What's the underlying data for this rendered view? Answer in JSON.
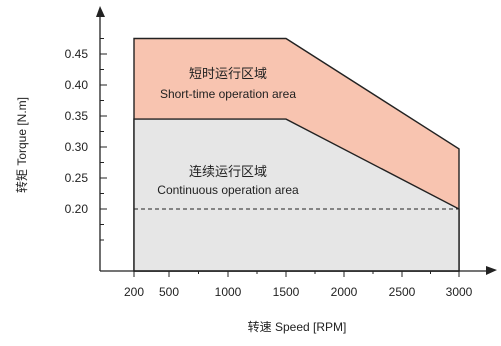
{
  "chart_data": {
    "type": "area",
    "xlabel": "转速 Speed [RPM]",
    "ylabel": "转矩 Torque [N.m]",
    "x_ticks": [
      200,
      500,
      1000,
      1500,
      2000,
      2500,
      3000
    ],
    "y_ticks": [
      0.2,
      0.25,
      0.3,
      0.35,
      0.4,
      0.45
    ],
    "y_tick_labels": [
      "0.20",
      "0.25",
      "0.30",
      "0.35",
      "0.40",
      "0.45"
    ],
    "xlim": [
      200,
      3000
    ],
    "ylim": [
      0.1,
      0.48
    ],
    "series": [
      {
        "x": [
          200,
          1500,
          3000
        ],
        "y": [
          0.475,
          0.475,
          0.297
        ],
        "color": "#f8c4b0"
      },
      {
        "x": [
          200,
          1500,
          3000
        ],
        "y": [
          0.345,
          0.345,
          0.2
        ],
        "color": "#e6e6e6"
      }
    ],
    "reference_line": {
      "y": 0.2,
      "style": "dashed"
    },
    "annotations": [
      {
        "text_cn": "短时运行区域",
        "text_en": "Short-time operation area"
      },
      {
        "text_cn": "连续运行区域",
        "text_en": "Continuous operation area"
      }
    ],
    "grid": false
  }
}
